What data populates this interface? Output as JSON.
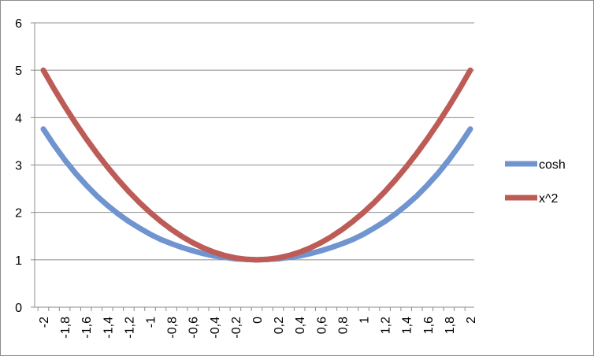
{
  "chart_data": {
    "type": "line",
    "title": "",
    "xlabel": "",
    "ylabel": "",
    "x": [
      "-2",
      "-1,9",
      "-1,8",
      "-1,7",
      "-1,6",
      "-1,5",
      "-1,4",
      "-1,3",
      "-1,2",
      "-1,1",
      "-1",
      "-0,9",
      "-0,8",
      "-0,7",
      "-0,6",
      "-0,5",
      "-0,4",
      "-0,3",
      "-0,2",
      "-0,1",
      "0",
      "0,1",
      "0,2",
      "0,3",
      "0,4",
      "0,5",
      "0,6",
      "0,7",
      "0,8",
      "0,9",
      "1",
      "1,1",
      "1,2",
      "1,3",
      "1,4",
      "1,5",
      "1,6",
      "1,7",
      "1,8",
      "1,9",
      "2"
    ],
    "x_tick_labels": [
      "-2",
      "-1,8",
      "-1,6",
      "-1,4",
      "-1,2",
      "-1",
      "-0,8",
      "-0,6",
      "-0,4",
      "-0,2",
      "0",
      "0,2",
      "0,4",
      "0,6",
      "0,8",
      "1",
      "1,2",
      "1,4",
      "1,6",
      "1,8",
      "2"
    ],
    "y_tick_labels": [
      "0",
      "1",
      "2",
      "3",
      "4",
      "5",
      "6"
    ],
    "ylim": [
      0,
      6
    ],
    "grid": true,
    "legend_position": "right",
    "series": [
      {
        "name": "cosh",
        "color": "#7094cf",
        "values": [
          3.76,
          3.42,
          3.11,
          2.83,
          2.58,
          2.35,
          2.15,
          1.97,
          1.81,
          1.67,
          1.54,
          1.43,
          1.34,
          1.26,
          1.19,
          1.13,
          1.08,
          1.05,
          1.02,
          1.01,
          1.0,
          1.01,
          1.02,
          1.05,
          1.08,
          1.13,
          1.19,
          1.26,
          1.34,
          1.43,
          1.54,
          1.67,
          1.81,
          1.97,
          2.15,
          2.35,
          2.58,
          2.83,
          3.11,
          3.42,
          3.76
        ]
      },
      {
        "name": "x^2",
        "color": "#bd5c57",
        "values": [
          5.0,
          4.61,
          4.24,
          3.89,
          3.56,
          3.25,
          2.96,
          2.69,
          2.44,
          2.21,
          2.0,
          1.81,
          1.64,
          1.49,
          1.36,
          1.25,
          1.16,
          1.09,
          1.04,
          1.01,
          1.0,
          1.01,
          1.04,
          1.09,
          1.16,
          1.25,
          1.36,
          1.49,
          1.64,
          1.81,
          2.0,
          2.21,
          2.44,
          2.69,
          2.96,
          3.25,
          3.56,
          3.89,
          4.24,
          4.61,
          5.0
        ]
      }
    ]
  }
}
